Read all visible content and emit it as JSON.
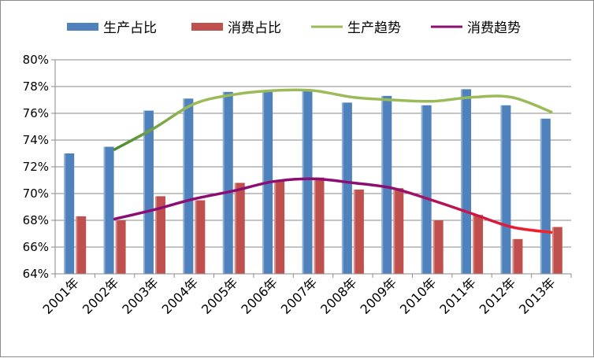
{
  "chart_data": {
    "type": "bar",
    "categories": [
      "2001年",
      "2002年",
      "2003年",
      "2004年",
      "2005年",
      "2006年",
      "2007年",
      "2008年",
      "2009年",
      "2010年",
      "2011年",
      "2012年",
      "2013年"
    ],
    "ylim": [
      0.64,
      0.8
    ],
    "y_ticks": [
      "64%",
      "66%",
      "68%",
      "70%",
      "72%",
      "74%",
      "76%",
      "78%",
      "80%"
    ],
    "y_tick_values": [
      0.64,
      0.66,
      0.68,
      0.7,
      0.72,
      0.74,
      0.76,
      0.78,
      0.8
    ],
    "grid": "horizontal",
    "legend_position": "top",
    "series": [
      {
        "name": "生产占比",
        "kind": "bar",
        "color": "#4f81bd",
        "values": [
          0.73,
          0.735,
          0.762,
          0.771,
          0.776,
          0.777,
          0.778,
          0.768,
          0.773,
          0.766,
          0.778,
          0.766,
          0.756
        ]
      },
      {
        "name": "消费占比",
        "kind": "bar",
        "color": "#c0504d",
        "values": [
          0.683,
          0.68,
          0.698,
          0.695,
          0.708,
          0.71,
          0.712,
          0.703,
          0.704,
          0.68,
          0.684,
          0.666,
          0.675
        ]
      },
      {
        "name": "生产趋势",
        "kind": "line",
        "color": "#9bbb59",
        "start_color": "#4a8a30",
        "start_index": 1,
        "values": [
          null,
          0.733,
          0.749,
          0.767,
          0.774,
          0.777,
          0.777,
          0.772,
          0.77,
          0.769,
          0.772,
          0.772,
          0.761
        ]
      },
      {
        "name": "消费趋势",
        "kind": "line",
        "color": "#8b0f73",
        "end_color": "#ff2020",
        "start_index": 1,
        "values": [
          null,
          0.681,
          0.688,
          0.696,
          0.702,
          0.709,
          0.711,
          0.708,
          0.704,
          0.695,
          0.685,
          0.675,
          0.671
        ]
      }
    ]
  }
}
